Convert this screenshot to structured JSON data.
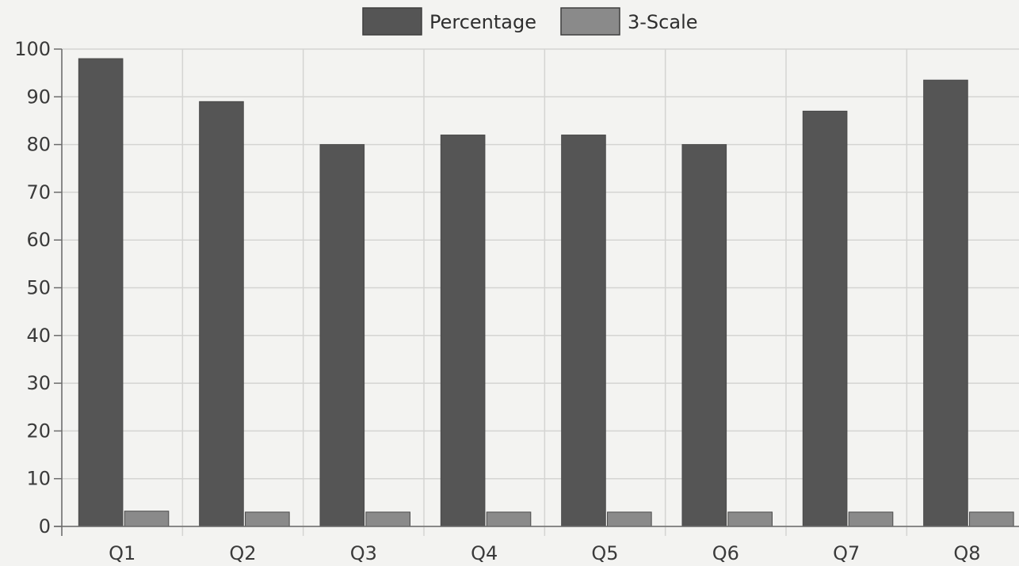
{
  "chart_data": {
    "type": "bar",
    "categories": [
      "Q1",
      "Q2",
      "Q3",
      "Q4",
      "Q5",
      "Q6",
      "Q7",
      "Q8"
    ],
    "series": [
      {
        "name": "Percentage",
        "values": [
          98,
          89,
          80,
          82,
          82,
          80,
          87,
          93.5
        ],
        "color": "#555555"
      },
      {
        "name": "3-Scale",
        "values": [
          3.2,
          3.0,
          3.0,
          3.0,
          3.0,
          3.0,
          3.0,
          3.0
        ],
        "color": "#8a8a8a"
      }
    ],
    "ylim": [
      0,
      100
    ],
    "y_ticks": [
      0,
      10,
      20,
      30,
      40,
      50,
      60,
      70,
      80,
      90,
      100
    ],
    "grid": true,
    "legend_position": "top-center",
    "grid_color": "#d4d4d2",
    "axis_color": "#6b6b6b"
  }
}
